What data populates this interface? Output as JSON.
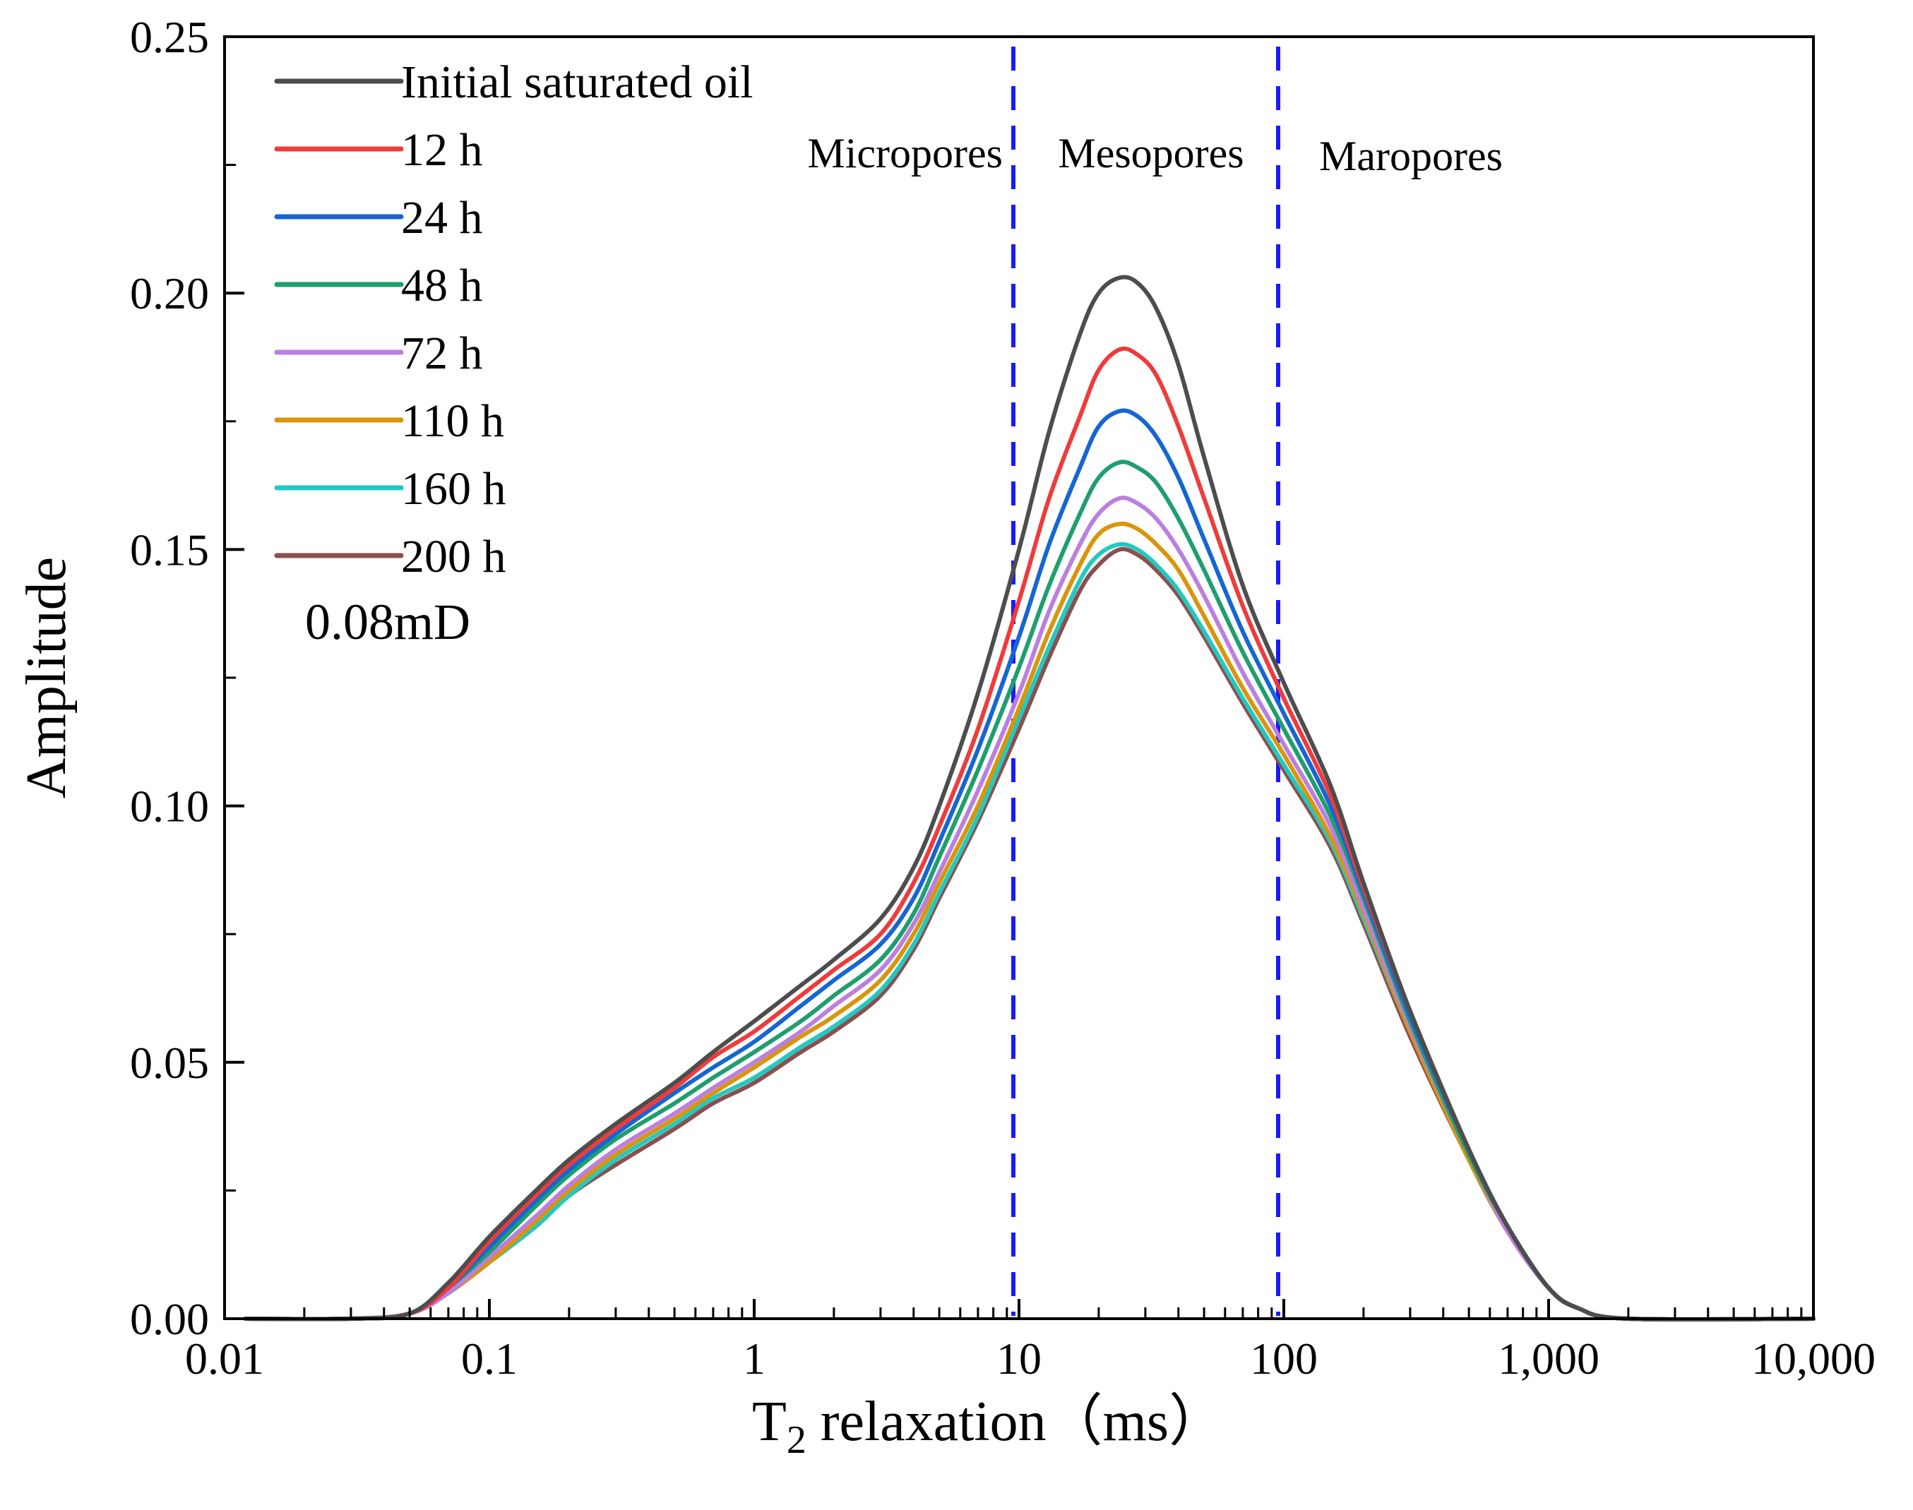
{
  "chart_data": {
    "type": "line",
    "xscale": "log",
    "xlabel_main": "T",
    "xlabel_sub": "2",
    "xlabel_rest": " relaxation（ms）",
    "ylabel": "Amplitude",
    "xlim": [
      0.01,
      10000
    ],
    "ylim": [
      0,
      0.25
    ],
    "xticks": [
      0.01,
      0.1,
      1,
      10,
      100,
      1000,
      10000
    ],
    "xtick_labels": [
      "0.01",
      "0.1",
      "1",
      "10",
      "100",
      "1,000",
      "10,000"
    ],
    "yticks": [
      0,
      0.05,
      0.1,
      0.15,
      0.2,
      0.25
    ],
    "ytick_labels": [
      "0.00",
      "0.05",
      "0.10",
      "0.15",
      "0.20",
      "0.25"
    ],
    "permeability_label": "0.08mD",
    "region_boundaries": [
      10,
      100
    ],
    "region_labels": [
      "Micropores",
      "Mesopores",
      "Maropores"
    ],
    "boundary_color": "#1a1aff",
    "series": [
      {
        "name": "Initial saturated oil",
        "color": "#4d4d4d",
        "points": [
          [
            0.012,
            0
          ],
          [
            0.03,
            0
          ],
          [
            0.05,
            0.001
          ],
          [
            0.07,
            0.007
          ],
          [
            0.1,
            0.016
          ],
          [
            0.15,
            0.025
          ],
          [
            0.2,
            0.031
          ],
          [
            0.3,
            0.038
          ],
          [
            0.5,
            0.046
          ],
          [
            0.7,
            0.052
          ],
          [
            1,
            0.058
          ],
          [
            1.5,
            0.065
          ],
          [
            2,
            0.07
          ],
          [
            3,
            0.078
          ],
          [
            4,
            0.088
          ],
          [
            5,
            0.1
          ],
          [
            7,
            0.122
          ],
          [
            10,
            0.15
          ],
          [
            13,
            0.173
          ],
          [
            17,
            0.192
          ],
          [
            20,
            0.2
          ],
          [
            24,
            0.203
          ],
          [
            28,
            0.202
          ],
          [
            33,
            0.197
          ],
          [
            40,
            0.186
          ],
          [
            50,
            0.168
          ],
          [
            70,
            0.143
          ],
          [
            100,
            0.124
          ],
          [
            150,
            0.104
          ],
          [
            200,
            0.085
          ],
          [
            300,
            0.06
          ],
          [
            500,
            0.033
          ],
          [
            700,
            0.018
          ],
          [
            1000,
            0.006
          ],
          [
            1300,
            0.002
          ],
          [
            2000,
            0
          ],
          [
            10000,
            0
          ]
        ]
      },
      {
        "name": "12 h",
        "color": "#ef3b3b",
        "points": [
          [
            0.012,
            0
          ],
          [
            0.03,
            0
          ],
          [
            0.05,
            0.001
          ],
          [
            0.07,
            0.006
          ],
          [
            0.1,
            0.015
          ],
          [
            0.15,
            0.024
          ],
          [
            0.2,
            0.03
          ],
          [
            0.3,
            0.037
          ],
          [
            0.5,
            0.045
          ],
          [
            0.7,
            0.051
          ],
          [
            1,
            0.056
          ],
          [
            1.5,
            0.063
          ],
          [
            2,
            0.068
          ],
          [
            3,
            0.075
          ],
          [
            4,
            0.085
          ],
          [
            5,
            0.096
          ],
          [
            7,
            0.115
          ],
          [
            10,
            0.14
          ],
          [
            13,
            0.16
          ],
          [
            17,
            0.176
          ],
          [
            20,
            0.185
          ],
          [
            24,
            0.189
          ],
          [
            28,
            0.188
          ],
          [
            33,
            0.184
          ],
          [
            40,
            0.174
          ],
          [
            50,
            0.16
          ],
          [
            70,
            0.139
          ],
          [
            100,
            0.121
          ],
          [
            150,
            0.102
          ],
          [
            200,
            0.084
          ],
          [
            300,
            0.06
          ],
          [
            500,
            0.033
          ],
          [
            700,
            0.018
          ],
          [
            1000,
            0.006
          ],
          [
            1300,
            0.002
          ],
          [
            2000,
            0
          ],
          [
            10000,
            0
          ]
        ]
      },
      {
        "name": "24 h",
        "color": "#1566d4",
        "points": [
          [
            0.012,
            0
          ],
          [
            0.03,
            0
          ],
          [
            0.05,
            0.001
          ],
          [
            0.07,
            0.006
          ],
          [
            0.1,
            0.014
          ],
          [
            0.15,
            0.023
          ],
          [
            0.2,
            0.029
          ],
          [
            0.3,
            0.036
          ],
          [
            0.5,
            0.044
          ],
          [
            0.7,
            0.049
          ],
          [
            1,
            0.054
          ],
          [
            1.5,
            0.061
          ],
          [
            2,
            0.066
          ],
          [
            3,
            0.073
          ],
          [
            4,
            0.082
          ],
          [
            5,
            0.093
          ],
          [
            7,
            0.111
          ],
          [
            10,
            0.133
          ],
          [
            13,
            0.151
          ],
          [
            17,
            0.166
          ],
          [
            20,
            0.174
          ],
          [
            24,
            0.177
          ],
          [
            28,
            0.176
          ],
          [
            33,
            0.172
          ],
          [
            40,
            0.164
          ],
          [
            50,
            0.152
          ],
          [
            70,
            0.134
          ],
          [
            100,
            0.118
          ],
          [
            150,
            0.1
          ],
          [
            200,
            0.083
          ],
          [
            300,
            0.059
          ],
          [
            500,
            0.033
          ],
          [
            700,
            0.018
          ],
          [
            1000,
            0.006
          ],
          [
            1300,
            0.002
          ],
          [
            2000,
            0
          ],
          [
            10000,
            0
          ]
        ]
      },
      {
        "name": "48 h",
        "color": "#1f9e6e",
        "points": [
          [
            0.012,
            0
          ],
          [
            0.03,
            0
          ],
          [
            0.05,
            0.001
          ],
          [
            0.07,
            0.006
          ],
          [
            0.1,
            0.013
          ],
          [
            0.15,
            0.022
          ],
          [
            0.2,
            0.028
          ],
          [
            0.3,
            0.035
          ],
          [
            0.5,
            0.042
          ],
          [
            0.7,
            0.047
          ],
          [
            1,
            0.052
          ],
          [
            1.5,
            0.058
          ],
          [
            2,
            0.063
          ],
          [
            3,
            0.07
          ],
          [
            4,
            0.079
          ],
          [
            5,
            0.09
          ],
          [
            7,
            0.107
          ],
          [
            10,
            0.127
          ],
          [
            13,
            0.143
          ],
          [
            17,
            0.157
          ],
          [
            20,
            0.164
          ],
          [
            24,
            0.167
          ],
          [
            28,
            0.166
          ],
          [
            33,
            0.163
          ],
          [
            40,
            0.156
          ],
          [
            50,
            0.146
          ],
          [
            70,
            0.13
          ],
          [
            100,
            0.115
          ],
          [
            150,
            0.098
          ],
          [
            200,
            0.082
          ],
          [
            300,
            0.058
          ],
          [
            500,
            0.032
          ],
          [
            700,
            0.018
          ],
          [
            1000,
            0.006
          ],
          [
            1300,
            0.002
          ],
          [
            2000,
            0
          ],
          [
            10000,
            0
          ]
        ]
      },
      {
        "name": "72 h",
        "color": "#bb7fe0",
        "points": [
          [
            0.012,
            0
          ],
          [
            0.03,
            0
          ],
          [
            0.05,
            0.001
          ],
          [
            0.07,
            0.005
          ],
          [
            0.1,
            0.012
          ],
          [
            0.15,
            0.02
          ],
          [
            0.2,
            0.026
          ],
          [
            0.3,
            0.033
          ],
          [
            0.5,
            0.04
          ],
          [
            0.7,
            0.045
          ],
          [
            1,
            0.05
          ],
          [
            1.5,
            0.056
          ],
          [
            2,
            0.061
          ],
          [
            3,
            0.068
          ],
          [
            4,
            0.077
          ],
          [
            5,
            0.087
          ],
          [
            7,
            0.103
          ],
          [
            10,
            0.122
          ],
          [
            13,
            0.138
          ],
          [
            17,
            0.151
          ],
          [
            20,
            0.157
          ],
          [
            24,
            0.16
          ],
          [
            28,
            0.159
          ],
          [
            33,
            0.156
          ],
          [
            40,
            0.15
          ],
          [
            50,
            0.141
          ],
          [
            70,
            0.126
          ],
          [
            100,
            0.112
          ],
          [
            150,
            0.096
          ],
          [
            200,
            0.08
          ],
          [
            300,
            0.057
          ],
          [
            500,
            0.032
          ],
          [
            700,
            0.017
          ],
          [
            1000,
            0.006
          ],
          [
            1300,
            0.002
          ],
          [
            2000,
            0
          ],
          [
            10000,
            0
          ]
        ]
      },
      {
        "name": "110 h",
        "color": "#d9950c",
        "points": [
          [
            0.012,
            0
          ],
          [
            0.03,
            0
          ],
          [
            0.05,
            0.001
          ],
          [
            0.07,
            0.005
          ],
          [
            0.1,
            0.011
          ],
          [
            0.15,
            0.019
          ],
          [
            0.2,
            0.025
          ],
          [
            0.3,
            0.032
          ],
          [
            0.5,
            0.039
          ],
          [
            0.7,
            0.044
          ],
          [
            1,
            0.049
          ],
          [
            1.5,
            0.055
          ],
          [
            2,
            0.059
          ],
          [
            3,
            0.066
          ],
          [
            4,
            0.075
          ],
          [
            5,
            0.085
          ],
          [
            7,
            0.1
          ],
          [
            10,
            0.119
          ],
          [
            13,
            0.134
          ],
          [
            17,
            0.147
          ],
          [
            20,
            0.153
          ],
          [
            24,
            0.155
          ],
          [
            28,
            0.154
          ],
          [
            33,
            0.151
          ],
          [
            40,
            0.146
          ],
          [
            50,
            0.137
          ],
          [
            70,
            0.123
          ],
          [
            100,
            0.11
          ],
          [
            150,
            0.094
          ],
          [
            200,
            0.079
          ],
          [
            300,
            0.056
          ],
          [
            500,
            0.031
          ],
          [
            700,
            0.017
          ],
          [
            1000,
            0.006
          ],
          [
            1300,
            0.002
          ],
          [
            2000,
            0
          ],
          [
            10000,
            0
          ]
        ]
      },
      {
        "name": "160 h",
        "color": "#22c9c0",
        "points": [
          [
            0.012,
            0
          ],
          [
            0.03,
            0
          ],
          [
            0.05,
            0.001
          ],
          [
            0.07,
            0.005
          ],
          [
            0.1,
            0.011
          ],
          [
            0.15,
            0.018
          ],
          [
            0.2,
            0.024
          ],
          [
            0.3,
            0.031
          ],
          [
            0.5,
            0.038
          ],
          [
            0.7,
            0.043
          ],
          [
            1,
            0.047
          ],
          [
            1.5,
            0.053
          ],
          [
            2,
            0.057
          ],
          [
            3,
            0.064
          ],
          [
            4,
            0.073
          ],
          [
            5,
            0.083
          ],
          [
            7,
            0.098
          ],
          [
            10,
            0.117
          ],
          [
            13,
            0.131
          ],
          [
            17,
            0.144
          ],
          [
            20,
            0.149
          ],
          [
            24,
            0.151
          ],
          [
            28,
            0.15
          ],
          [
            33,
            0.147
          ],
          [
            40,
            0.142
          ],
          [
            50,
            0.134
          ],
          [
            70,
            0.121
          ],
          [
            100,
            0.108
          ],
          [
            150,
            0.093
          ],
          [
            200,
            0.078
          ],
          [
            300,
            0.056
          ],
          [
            500,
            0.031
          ],
          [
            700,
            0.017
          ],
          [
            1000,
            0.006
          ],
          [
            1300,
            0.002
          ],
          [
            2000,
            0
          ],
          [
            10000,
            0
          ]
        ]
      },
      {
        "name": "200 h",
        "color": "#8b4f4f",
        "points": [
          [
            0.012,
            0
          ],
          [
            0.03,
            0
          ],
          [
            0.05,
            0.001
          ],
          [
            0.07,
            0.005
          ],
          [
            0.1,
            0.011
          ],
          [
            0.15,
            0.018
          ],
          [
            0.2,
            0.024
          ],
          [
            0.3,
            0.03
          ],
          [
            0.5,
            0.037
          ],
          [
            0.7,
            0.042
          ],
          [
            1,
            0.046
          ],
          [
            1.5,
            0.052
          ],
          [
            2,
            0.056
          ],
          [
            3,
            0.063
          ],
          [
            4,
            0.072
          ],
          [
            5,
            0.082
          ],
          [
            7,
            0.097
          ],
          [
            10,
            0.115
          ],
          [
            13,
            0.129
          ],
          [
            17,
            0.142
          ],
          [
            20,
            0.147
          ],
          [
            24,
            0.15
          ],
          [
            28,
            0.149
          ],
          [
            33,
            0.146
          ],
          [
            40,
            0.141
          ],
          [
            50,
            0.133
          ],
          [
            70,
            0.12
          ],
          [
            100,
            0.107
          ],
          [
            150,
            0.092
          ],
          [
            200,
            0.077
          ],
          [
            300,
            0.055
          ],
          [
            500,
            0.031
          ],
          [
            700,
            0.017
          ],
          [
            1000,
            0.006
          ],
          [
            1300,
            0.002
          ],
          [
            2000,
            0
          ],
          [
            10000,
            0
          ]
        ]
      }
    ]
  }
}
